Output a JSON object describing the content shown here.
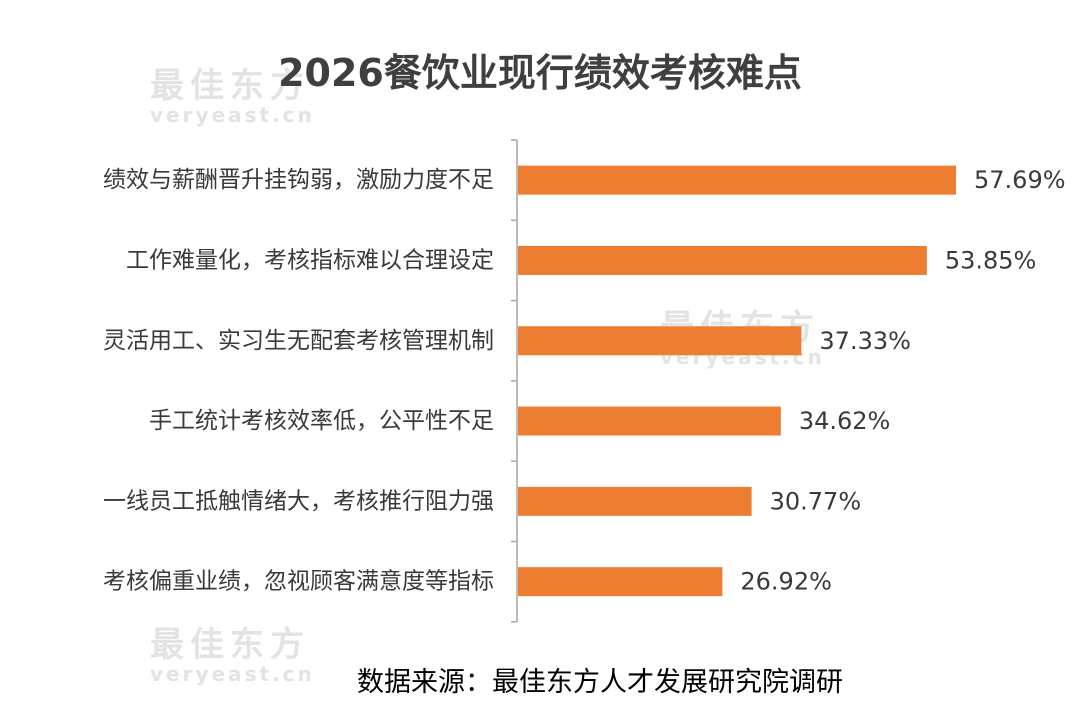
{
  "chart_data": {
    "type": "bar",
    "orientation": "horizontal",
    "title": "2026餐饮业现行绩效考核难点",
    "categories": [
      "绩效与薪酬晋升挂钩弱，激励力度不足",
      "工作难量化，考核指标难以合理设定",
      "灵活用工、实习生无配套考核管理机制",
      "手工统计考核效率低，公平性不足",
      "一线员工抵触情绪大，考核推行阻力强",
      "考核偏重业绩，忽视顾客满意度等指标"
    ],
    "values": [
      57.69,
      53.85,
      37.33,
      34.62,
      30.77,
      26.92
    ],
    "value_labels": [
      "57.69%",
      "53.85%",
      "37.33%",
      "34.62%",
      "30.77%",
      "26.92%"
    ],
    "xlim": [
      0,
      70
    ],
    "bar_color": "#ED7D31",
    "grid": false,
    "legend": "none"
  },
  "source": "数据来源：最佳东方人才发展研究院调研",
  "watermark": {
    "cn": "最佳东方",
    "en": "veryeast.cn"
  }
}
